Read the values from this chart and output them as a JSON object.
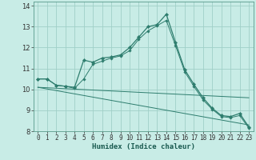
{
  "xlabel": "Humidex (Indice chaleur)",
  "bg_color": "#c8ece6",
  "grid_color": "#a0d0c8",
  "line_color": "#2e7d6e",
  "xlim": [
    -0.5,
    23.5
  ],
  "ylim": [
    8,
    14.2
  ],
  "xticks": [
    0,
    1,
    2,
    3,
    4,
    5,
    6,
    7,
    8,
    9,
    10,
    11,
    12,
    13,
    14,
    15,
    16,
    17,
    18,
    19,
    20,
    21,
    22,
    23
  ],
  "yticks": [
    8,
    9,
    10,
    11,
    12,
    13,
    14
  ],
  "series": [
    {
      "x": [
        0,
        1,
        2,
        3,
        4,
        5,
        6,
        7,
        8,
        9,
        10,
        11,
        12,
        13,
        14,
        15,
        16,
        17,
        18,
        19,
        20,
        21,
        22,
        23
      ],
      "y": [
        10.5,
        10.5,
        10.2,
        10.15,
        10.1,
        11.4,
        11.3,
        11.5,
        11.55,
        11.65,
        12.0,
        12.5,
        13.0,
        13.1,
        13.6,
        12.25,
        10.95,
        10.25,
        9.6,
        9.1,
        8.75,
        8.7,
        8.85,
        8.2
      ]
    },
    {
      "x": [
        0,
        1,
        2,
        3,
        4,
        5,
        6,
        7,
        8,
        9,
        10,
        11,
        12,
        13,
        14,
        15,
        16,
        17,
        18,
        19,
        20,
        21,
        22,
        23
      ],
      "y": [
        10.5,
        10.5,
        10.2,
        10.15,
        10.05,
        10.5,
        11.2,
        11.35,
        11.5,
        11.6,
        11.85,
        12.4,
        12.8,
        13.05,
        13.3,
        12.1,
        10.85,
        10.15,
        9.5,
        9.05,
        8.7,
        8.65,
        8.75,
        8.15
      ]
    },
    {
      "x": [
        0,
        23
      ],
      "y": [
        10.1,
        9.6
      ]
    },
    {
      "x": [
        0,
        23
      ],
      "y": [
        10.1,
        8.3
      ]
    }
  ]
}
